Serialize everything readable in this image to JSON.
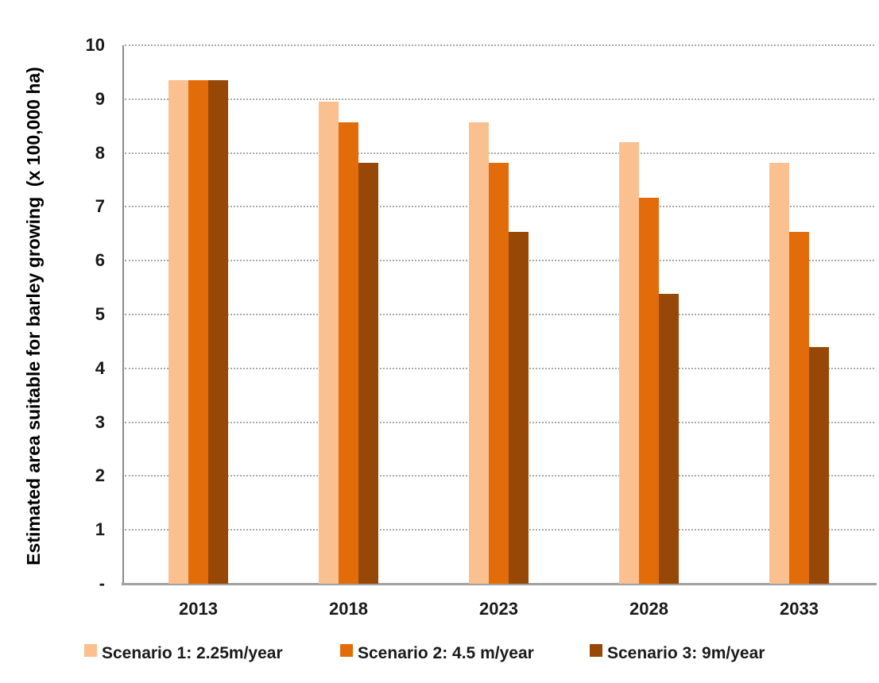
{
  "chart_data": {
    "type": "bar",
    "title": "",
    "categories": [
      "2013",
      "2018",
      "2023",
      "2028",
      "2033"
    ],
    "series": [
      {
        "name": "Scenario 1: 2.25m/year",
        "color": "#FAC090",
        "values": [
          9.35,
          8.95,
          8.57,
          8.2,
          7.82
        ]
      },
      {
        "name": "Scenario 2: 4.5 m/year",
        "color": "#E36C0A",
        "values": [
          9.35,
          8.57,
          7.82,
          7.17,
          6.53
        ]
      },
      {
        "name": "Scenario 3: 9m/year",
        "color": "#974807",
        "values": [
          9.35,
          7.82,
          6.53,
          5.38,
          4.4
        ]
      }
    ],
    "ylabel": "Estimated area suitable for barley growing  (x 100,000 ha)",
    "xlabel": "",
    "ylim": [
      0,
      10
    ],
    "yticks": [
      0,
      1,
      2,
      3,
      4,
      5,
      6,
      7,
      8,
      9,
      10
    ],
    "ytick_labels": [
      "-",
      "1",
      "2",
      "3",
      "4",
      "5",
      "6",
      "7",
      "8",
      "9",
      "10"
    ],
    "grid": "horizontal-dotted",
    "gridline_color": "#a8a8a8",
    "axis_color": "#8c8c8c",
    "legend_position": "bottom"
  }
}
